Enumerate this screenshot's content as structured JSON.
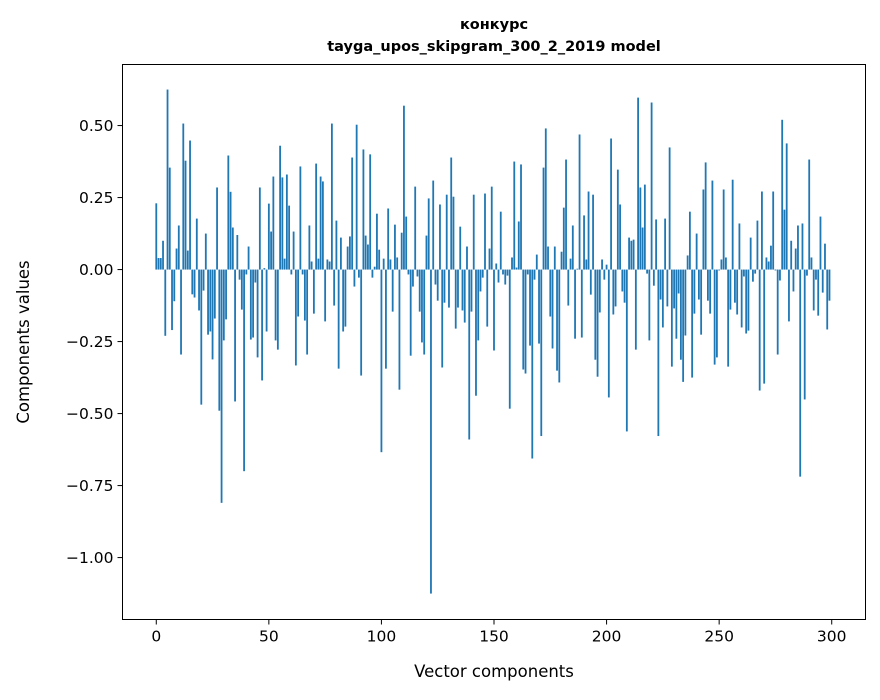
{
  "chart_data": {
    "type": "bar",
    "title_line1": "конкурс",
    "title_line2": "tayga_upos_skipgram_300_2_2019 model",
    "xlabel": "Vector components",
    "ylabel": "Components values",
    "xlim": [
      -15,
      315
    ],
    "ylim": [
      -1.215,
      0.712
    ],
    "xticks": [
      0,
      50,
      100,
      150,
      200,
      250,
      300
    ],
    "xtick_labels": [
      "0",
      "50",
      "100",
      "150",
      "200",
      "250",
      "300"
    ],
    "yticks": [
      0.5,
      0.25,
      0,
      -0.25,
      -0.5,
      -0.75,
      -1.0
    ],
    "ytick_labels": [
      "0.50",
      "0.25",
      "0.00",
      "−0.25",
      "−0.50",
      "−0.75",
      "−1.00"
    ],
    "grid": false,
    "bar_color": "#1f77b4",
    "values": [
      0.23,
      0.04,
      0.04,
      0.1,
      -0.23,
      0.625,
      0.354,
      -0.21,
      -0.11,
      0.073,
      0.153,
      -0.295,
      0.507,
      0.378,
      0.066,
      0.448,
      -0.086,
      -0.097,
      0.177,
      -0.142,
      -0.469,
      -0.073,
      0.125,
      -0.226,
      -0.215,
      -0.312,
      -0.17,
      0.285,
      -0.49,
      -0.81,
      -0.246,
      -0.173,
      0.396,
      0.27,
      0.146,
      -0.458,
      0.12,
      -0.035,
      -0.139,
      -0.7,
      -0.017,
      0.08,
      -0.243,
      -0.236,
      -0.045,
      -0.305,
      0.285,
      -0.385,
      0.005,
      -0.215,
      0.229,
      0.132,
      0.323,
      -0.246,
      -0.278,
      0.43,
      0.32,
      0.038,
      0.33,
      0.222,
      -0.017,
      0.132,
      -0.333,
      -0.163,
      0.358,
      -0.017,
      -0.177,
      -0.295,
      0.153,
      0.028,
      -0.153,
      0.368,
      0.038,
      0.323,
      0.306,
      -0.18,
      0.035,
      0.028,
      0.507,
      -0.125,
      0.17,
      -0.344,
      0.111,
      -0.215,
      -0.198,
      0.08,
      0.115,
      0.389,
      -0.059,
      0.503,
      -0.028,
      -0.368,
      0.417,
      0.118,
      0.087,
      0.4,
      -0.028,
      0.01,
      0.194,
      0.069,
      -0.634,
      0.038,
      -0.344,
      0.212,
      0.035,
      -0.146,
      0.156,
      0.042,
      -0.417,
      0.128,
      0.569,
      0.184,
      -0.017,
      -0.299,
      -0.059,
      0.288,
      -0.024,
      -0.146,
      -0.253,
      -0.295,
      0.118,
      0.247,
      -1.125,
      0.309,
      -0.052,
      -0.108,
      0.226,
      -0.34,
      -0.115,
      0.26,
      -0.132,
      0.389,
      0.253,
      -0.205,
      -0.132,
      0.149,
      -0.142,
      -0.184,
      0.08,
      -0.59,
      -0.146,
      0.26,
      -0.438,
      -0.246,
      -0.076,
      -0.028,
      0.264,
      -0.198,
      0.073,
      0.288,
      -0.281,
      0.021,
      -0.045,
      0.201,
      -0.017,
      -0.052,
      -0.021,
      -0.483,
      0.042,
      0.375,
      0.007,
      0.167,
      0.365,
      -0.347,
      -0.361,
      -0.017,
      -0.264,
      -0.656,
      -0.035,
      0.052,
      -0.257,
      -0.578,
      0.354,
      0.49,
      0.08,
      -0.163,
      -0.274,
      0.08,
      -0.351,
      -0.392,
      0.062,
      0.215,
      0.382,
      -0.125,
      0.038,
      0.153,
      -0.24,
      0.003,
      0.469,
      -0.236,
      0.188,
      0.035,
      0.271,
      -0.087,
      0.26,
      -0.313,
      -0.372,
      -0.149,
      0.035,
      -0.035,
      0.017,
      -0.444,
      0.455,
      -0.156,
      -0.128,
      0.347,
      0.226,
      -0.076,
      -0.115,
      -0.562,
      0.111,
      0.1,
      0.104,
      -0.278,
      0.597,
      0.285,
      0.146,
      0.295,
      -0.014,
      -0.246,
      0.58,
      -0.056,
      0.174,
      -0.578,
      -0.104,
      -0.201,
      0.177,
      -0.128,
      0.424,
      -0.337,
      -0.135,
      -0.24,
      -0.083,
      -0.313,
      -0.39,
      -0.229,
      0.049,
      0.201,
      -0.375,
      -0.153,
      0.125,
      -0.104,
      -0.226,
      0.278,
      0.372,
      -0.108,
      -0.153,
      0.309,
      -0.33,
      -0.305,
      -0.003,
      0.035,
      0.278,
      0.042,
      -0.337,
      -0.139,
      0.312,
      -0.115,
      -0.156,
      0.16,
      -0.201,
      -0.024,
      -0.222,
      -0.212,
      0.111,
      -0.042,
      -0.014,
      0.17,
      -0.42,
      0.271,
      -0.396,
      0.042,
      0.028,
      0.083,
      0.271,
      -0.003,
      -0.295,
      -0.038,
      0.52,
      0.208,
      0.438,
      -0.18,
      0.1,
      -0.076,
      0.073,
      0.153,
      -0.719,
      0.16,
      -0.451,
      -0.021,
      0.382,
      0.042,
      -0.142,
      -0.035,
      -0.16,
      0.184,
      -0.08,
      0.09,
      -0.208,
      -0.108
    ]
  }
}
